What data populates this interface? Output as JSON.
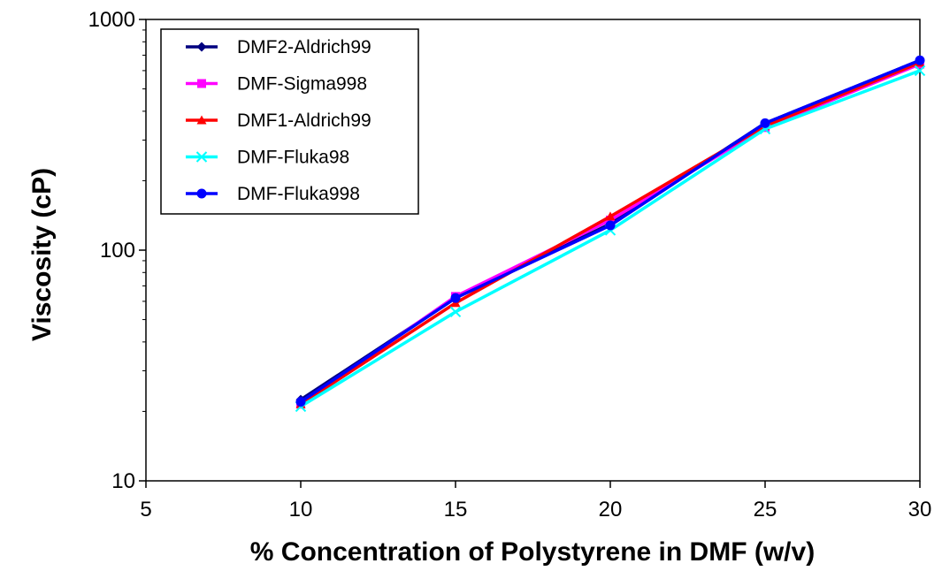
{
  "chart_data": {
    "type": "line",
    "title": "",
    "xlabel": "% Concentration of Polystyrene in DMF (w/v)",
    "ylabel": "Viscosity (cP)",
    "x": [
      10,
      15,
      20,
      25,
      30
    ],
    "xlim": [
      5,
      30
    ],
    "xticks": [
      5,
      10,
      15,
      20,
      25,
      30
    ],
    "xtick_labels": [
      "5",
      "10",
      "15",
      "20",
      "25",
      "30"
    ],
    "ylim": [
      10,
      1000
    ],
    "yscale": "log",
    "yticks": [
      10,
      100,
      1000
    ],
    "ytick_labels": [
      "10",
      "100",
      "1000"
    ],
    "grid": false,
    "legend_position": "top-left",
    "series": [
      {
        "name": "DMF2-Aldrich99",
        "color": "#000080",
        "marker": "diamond",
        "values": [
          22.5,
          62,
          130,
          355,
          665
        ]
      },
      {
        "name": "DMF-Sigma998",
        "color": "#ff00ff",
        "marker": "square",
        "values": [
          21.5,
          63,
          135,
          340,
          640
        ]
      },
      {
        "name": "DMF1-Aldrich99",
        "color": "#ff0000",
        "marker": "triangle",
        "values": [
          21.5,
          59,
          140,
          345,
          650
        ]
      },
      {
        "name": "DMF-Fluka98",
        "color": "#00ffff",
        "marker": "x",
        "values": [
          21.0,
          54,
          122,
          335,
          600
        ]
      },
      {
        "name": "DMF-Fluka998",
        "color": "#0000ff",
        "marker": "circle",
        "values": [
          22.0,
          62,
          128,
          355,
          665
        ]
      }
    ]
  }
}
